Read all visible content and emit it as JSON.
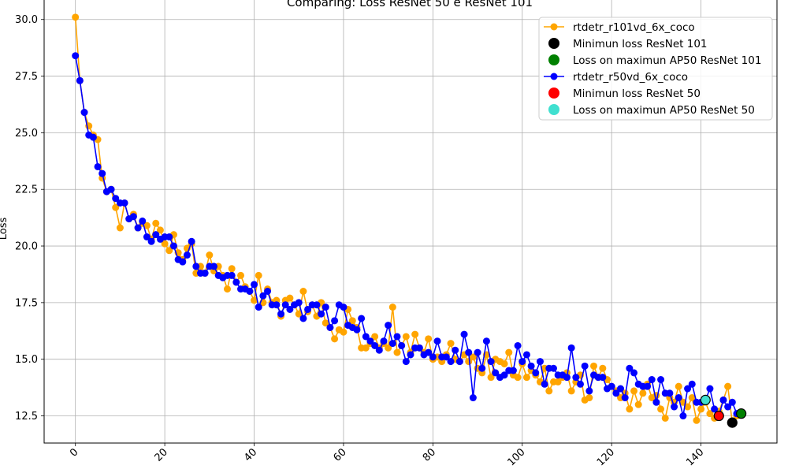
{
  "chart_data": {
    "type": "line",
    "title": "Comparing: Loss ResNet 50 e ResNet 101",
    "xlabel": "",
    "ylabel": "Loss",
    "xlim": [
      -7,
      157
    ],
    "ylim": [
      11.3,
      31.0
    ],
    "xticks": [
      0,
      20,
      40,
      60,
      80,
      100,
      120,
      140
    ],
    "yticks": [
      12.5,
      15.0,
      17.5,
      20.0,
      22.5,
      25.0,
      27.5,
      30.0
    ],
    "grid": true,
    "legend_position": "top-right",
    "colors": {
      "r101": "#ffa500",
      "r50": "#0000ff",
      "min_r101": "#000000",
      "ap50_r101": "#008000",
      "min_r50": "#ff0000",
      "ap50_r50": "#40e0d0"
    },
    "series": [
      {
        "name": "rtdetr_r101vd_6x_coco",
        "color": "#ffa500",
        "x": [
          0,
          1,
          2,
          3,
          4,
          5,
          6,
          7,
          8,
          9,
          10,
          11,
          12,
          13,
          14,
          15,
          16,
          17,
          18,
          19,
          20,
          21,
          22,
          23,
          24,
          25,
          26,
          27,
          28,
          29,
          30,
          31,
          32,
          33,
          34,
          35,
          36,
          37,
          38,
          39,
          40,
          41,
          42,
          43,
          44,
          45,
          46,
          47,
          48,
          49,
          50,
          51,
          52,
          53,
          54,
          55,
          56,
          57,
          58,
          59,
          60,
          61,
          62,
          63,
          64,
          65,
          66,
          67,
          68,
          69,
          70,
          71,
          72,
          73,
          74,
          75,
          76,
          77,
          78,
          79,
          80,
          81,
          82,
          83,
          84,
          85,
          86,
          87,
          88,
          89,
          90,
          91,
          92,
          93,
          94,
          95,
          96,
          97,
          98,
          99,
          100,
          101,
          102,
          103,
          104,
          105,
          106,
          107,
          108,
          109,
          110,
          111,
          112,
          113,
          114,
          115,
          116,
          117,
          118,
          119,
          120,
          121,
          122,
          123,
          124,
          125,
          126,
          127,
          128,
          129,
          130,
          131,
          132,
          133,
          134,
          135,
          136,
          137,
          138,
          139,
          140,
          141,
          142,
          143,
          144,
          145,
          146,
          147,
          148,
          149
        ],
        "y": [
          30.1,
          27.3,
          25.9,
          25.3,
          24.9,
          24.7,
          23.0,
          22.4,
          22.5,
          21.7,
          20.8,
          21.9,
          21.2,
          21.4,
          20.8,
          21.0,
          20.9,
          20.3,
          21.0,
          20.7,
          20.1,
          19.8,
          20.5,
          19.7,
          19.4,
          19.9,
          20.1,
          18.8,
          19.1,
          18.8,
          19.6,
          18.9,
          19.1,
          18.7,
          18.1,
          19.0,
          18.4,
          18.7,
          18.2,
          18.0,
          17.6,
          18.7,
          17.5,
          18.1,
          17.5,
          17.6,
          16.9,
          17.6,
          17.7,
          17.4,
          17.0,
          18.0,
          17.1,
          17.4,
          16.9,
          17.5,
          16.6,
          16.4,
          15.9,
          16.3,
          16.2,
          17.2,
          16.7,
          16.4,
          15.5,
          15.5,
          15.7,
          16.0,
          15.5,
          15.7,
          15.5,
          17.3,
          15.3,
          15.6,
          16.0,
          15.3,
          16.1,
          15.5,
          15.3,
          15.9,
          15.0,
          15.1,
          14.9,
          15.2,
          15.7,
          15.0,
          14.9,
          15.2,
          14.9,
          15.1,
          14.6,
          14.4,
          15.2,
          14.2,
          15.0,
          14.9,
          14.8,
          15.3,
          14.3,
          14.2,
          14.8,
          14.2,
          14.5,
          14.3,
          14.0,
          14.6,
          13.6,
          14.0,
          14.0,
          14.2,
          14.4,
          13.6,
          14.0,
          14.3,
          13.2,
          13.3,
          14.7,
          14.2,
          14.6,
          14.1,
          13.8,
          13.6,
          13.3,
          13.5,
          12.8,
          13.6,
          13.0,
          13.5,
          13.9,
          13.3,
          13.4,
          12.8,
          12.4,
          13.3,
          13.1,
          13.8,
          13.1,
          12.9,
          13.3,
          12.3,
          12.8,
          13.1,
          12.6,
          12.4,
          12.7,
          13.2,
          13.8,
          12.2,
          12.5,
          12.6
        ]
      },
      {
        "name": "rtdetr_r50vd_6x_coco",
        "color": "#0000ff",
        "x": [
          0,
          1,
          2,
          3,
          4,
          5,
          6,
          7,
          8,
          9,
          10,
          11,
          12,
          13,
          14,
          15,
          16,
          17,
          18,
          19,
          20,
          21,
          22,
          23,
          24,
          25,
          26,
          27,
          28,
          29,
          30,
          31,
          32,
          33,
          34,
          35,
          36,
          37,
          38,
          39,
          40,
          41,
          42,
          43,
          44,
          45,
          46,
          47,
          48,
          49,
          50,
          51,
          52,
          53,
          54,
          55,
          56,
          57,
          58,
          59,
          60,
          61,
          62,
          63,
          64,
          65,
          66,
          67,
          68,
          69,
          70,
          71,
          72,
          73,
          74,
          75,
          76,
          77,
          78,
          79,
          80,
          81,
          82,
          83,
          84,
          85,
          86,
          87,
          88,
          89,
          90,
          91,
          92,
          93,
          94,
          95,
          96,
          97,
          98,
          99,
          100,
          101,
          102,
          103,
          104,
          105,
          106,
          107,
          108,
          109,
          110,
          111,
          112,
          113,
          114,
          115,
          116,
          117,
          118,
          119,
          120,
          121,
          122,
          123,
          124,
          125,
          126,
          127,
          128,
          129,
          130,
          131,
          132,
          133,
          134,
          135,
          136,
          137,
          138,
          139,
          140,
          141,
          142,
          143,
          144,
          145,
          146,
          147,
          148
        ],
        "y": [
          28.4,
          27.3,
          25.9,
          24.9,
          24.8,
          23.5,
          23.2,
          22.4,
          22.5,
          22.1,
          21.9,
          21.9,
          21.2,
          21.3,
          20.8,
          21.1,
          20.4,
          20.2,
          20.5,
          20.3,
          20.4,
          20.4,
          20.0,
          19.4,
          19.3,
          19.6,
          20.2,
          19.1,
          18.8,
          18.8,
          19.1,
          19.1,
          18.7,
          18.6,
          18.7,
          18.7,
          18.4,
          18.1,
          18.1,
          18.0,
          18.3,
          17.3,
          17.8,
          18.0,
          17.4,
          17.4,
          17.0,
          17.4,
          17.2,
          17.4,
          17.5,
          16.8,
          17.2,
          17.4,
          17.4,
          17.0,
          17.3,
          16.4,
          16.7,
          17.4,
          17.3,
          16.5,
          16.4,
          16.3,
          16.8,
          16.0,
          15.8,
          15.6,
          15.4,
          15.8,
          16.5,
          15.7,
          16.0,
          15.6,
          14.9,
          15.2,
          15.5,
          15.5,
          15.2,
          15.3,
          15.1,
          15.8,
          15.1,
          15.1,
          14.9,
          15.4,
          14.9,
          16.1,
          15.3,
          13.3,
          15.3,
          14.6,
          15.8,
          14.9,
          14.4,
          14.2,
          14.3,
          14.5,
          14.5,
          15.6,
          14.9,
          15.2,
          14.7,
          14.4,
          14.9,
          13.9,
          14.6,
          14.6,
          14.3,
          14.3,
          14.2,
          15.5,
          14.2,
          13.9,
          14.7,
          13.6,
          14.3,
          14.2,
          14.2,
          13.7,
          13.8,
          13.5,
          13.7,
          13.3,
          14.6,
          14.4,
          13.9,
          13.8,
          13.8,
          14.1,
          13.1,
          14.1,
          13.5,
          13.5,
          12.9,
          13.3,
          12.5,
          13.7,
          13.9,
          13.1,
          13.1,
          13.2,
          13.7,
          12.8,
          12.5,
          13.2,
          12.9,
          13.1,
          12.6
        ]
      }
    ],
    "markers": [
      {
        "name": "Minimun loss ResNet 101",
        "x": 147,
        "y": 12.2,
        "color": "#000000"
      },
      {
        "name": "Loss on maximun AP50 ResNet 101",
        "x": 149,
        "y": 12.6,
        "color": "#008000"
      },
      {
        "name": "Minimun loss ResNet 50",
        "x": 144,
        "y": 12.5,
        "color": "#ff0000"
      },
      {
        "name": "Loss on maximun AP50 ResNet 50",
        "x": 141,
        "y": 13.2,
        "color": "#40e0d0"
      }
    ],
    "legend": [
      {
        "label": "rtdetr_r101vd_6x_coco",
        "kind": "line",
        "color": "#ffa500"
      },
      {
        "label": "Minimun loss ResNet 101",
        "kind": "dot",
        "color": "#000000"
      },
      {
        "label": "Loss on maximun AP50 ResNet 101",
        "kind": "dot",
        "color": "#008000"
      },
      {
        "label": "rtdetr_r50vd_6x_coco",
        "kind": "line",
        "color": "#0000ff"
      },
      {
        "label": "Minimun loss ResNet 50",
        "kind": "dot",
        "color": "#ff0000"
      },
      {
        "label": "Loss on maximun AP50 ResNet 50",
        "kind": "dot",
        "color": "#40e0d0"
      }
    ]
  }
}
